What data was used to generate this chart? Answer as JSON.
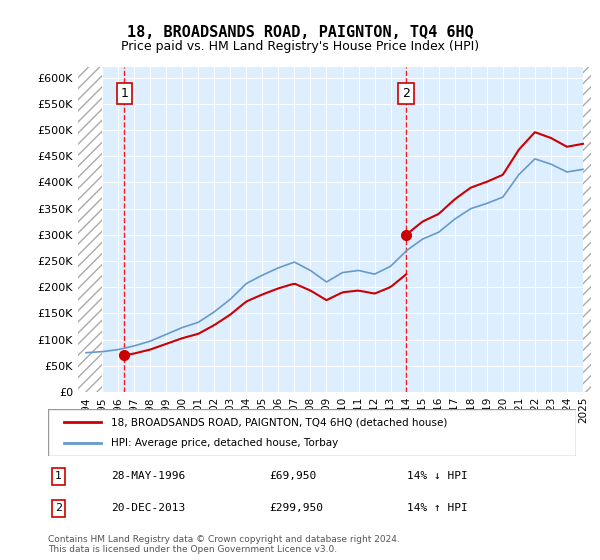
{
  "title": "18, BROADSANDS ROAD, PAIGNTON, TQ4 6HQ",
  "subtitle": "Price paid vs. HM Land Registry's House Price Index (HPI)",
  "ylim": [
    0,
    620000
  ],
  "yticks": [
    0,
    50000,
    100000,
    150000,
    200000,
    250000,
    300000,
    350000,
    400000,
    450000,
    500000,
    550000,
    600000
  ],
  "ytick_labels": [
    "£0",
    "£50K",
    "£100K",
    "£150K",
    "£200K",
    "£250K",
    "£300K",
    "£350K",
    "£400K",
    "£450K",
    "£500K",
    "£550K",
    "£600K"
  ],
  "xlabel_years": [
    1994,
    1995,
    1996,
    1997,
    1998,
    1999,
    2000,
    2001,
    2002,
    2003,
    2004,
    2005,
    2006,
    2007,
    2008,
    2009,
    2010,
    2011,
    2012,
    2013,
    2014,
    2015,
    2016,
    2017,
    2018,
    2019,
    2020,
    2021,
    2022,
    2023,
    2024,
    2025
  ],
  "sale1_year": 1996.4,
  "sale1_price": 69950,
  "sale2_year": 2013.97,
  "sale2_price": 299950,
  "hpi_years": [
    1994,
    1995,
    1996,
    1997,
    1998,
    1999,
    2000,
    2001,
    2002,
    2003,
    2004,
    2005,
    2006,
    2007,
    2008,
    2009,
    2010,
    2011,
    2012,
    2013,
    2014,
    2015,
    2016,
    2017,
    2018,
    2019,
    2020,
    2021,
    2022,
    2023,
    2024,
    2025
  ],
  "hpi_values": [
    75000,
    77000,
    81000,
    88000,
    97000,
    110000,
    123000,
    133000,
    153000,
    177000,
    207000,
    223000,
    237000,
    248000,
    232000,
    210000,
    228000,
    232000,
    225000,
    240000,
    270000,
    292000,
    305000,
    330000,
    350000,
    360000,
    372000,
    415000,
    445000,
    435000,
    420000,
    425000
  ],
  "sale_line_color": "#cc0000",
  "hpi_line_color": "#6699cc",
  "sale_marker_color": "#cc0000",
  "vline_color": "#ff0000",
  "background_color": "#ddeeff",
  "hatch_color": "#cccccc",
  "legend_label_sale": "18, BROADSANDS ROAD, PAIGNTON, TQ4 6HQ (detached house)",
  "legend_label_hpi": "HPI: Average price, detached house, Torbay",
  "note1_num": "1",
  "note1_date": "28-MAY-1996",
  "note1_price": "£69,950",
  "note1_hpi": "14% ↓ HPI",
  "note2_num": "2",
  "note2_date": "20-DEC-2013",
  "note2_price": "£299,950",
  "note2_hpi": "14% ↑ HPI",
  "footer": "Contains HM Land Registry data © Crown copyright and database right 2024.\nThis data is licensed under the Open Government Licence v3.0.",
  "xlim_left": 1993.5,
  "xlim_right": 2025.5
}
